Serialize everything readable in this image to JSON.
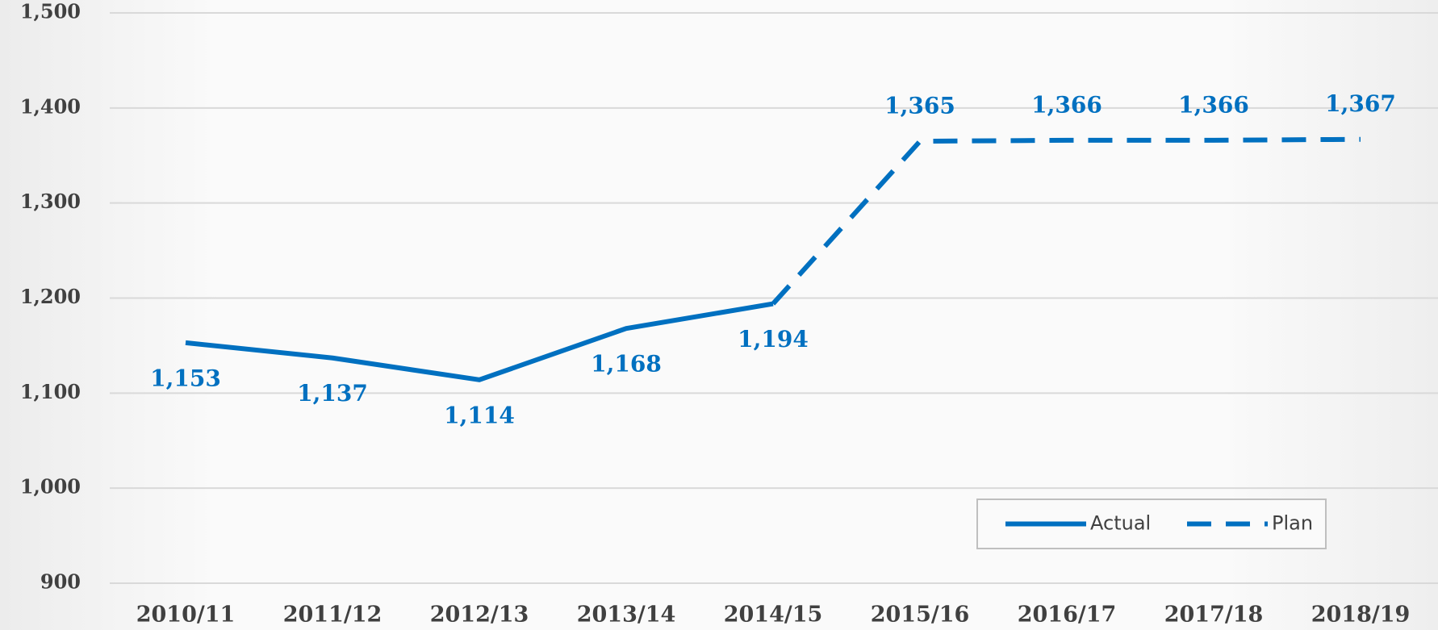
{
  "chart_data": {
    "type": "line",
    "categories": [
      "2010/11",
      "2011/12",
      "2012/13",
      "2013/14",
      "2014/15",
      "2015/16",
      "2016/17",
      "2017/18",
      "2018/19"
    ],
    "series": [
      {
        "name": "Actual",
        "color": "#0070c0",
        "dashed": false,
        "values": [
          1153,
          1137,
          1114,
          1168,
          1194,
          null,
          null,
          null,
          null
        ],
        "value_labels": [
          "1,153",
          "1,137",
          "1,114",
          "1,168",
          "1,194",
          null,
          null,
          null,
          null
        ]
      },
      {
        "name": "Plan",
        "color": "#0070c0",
        "dashed": true,
        "values": [
          null,
          null,
          null,
          null,
          1194,
          1365,
          1366,
          1366,
          1367
        ],
        "value_labels": [
          null,
          null,
          null,
          null,
          null,
          "1,365",
          "1,366",
          "1,366",
          "1,367"
        ]
      }
    ],
    "ylim": [
      900,
      1500
    ],
    "yticks": [
      900,
      {
        "value": 1000,
        "label": "1,000"
      },
      {
        "value": 1100,
        "label": "1,100"
      },
      {
        "value": 1200,
        "label": "1,200"
      },
      {
        "value": 1300,
        "label": "1,300"
      },
      {
        "value": 1400,
        "label": "1,400"
      },
      {
        "value": 1500,
        "label": "1,500"
      }
    ],
    "grid": true,
    "legend": "lower right"
  }
}
